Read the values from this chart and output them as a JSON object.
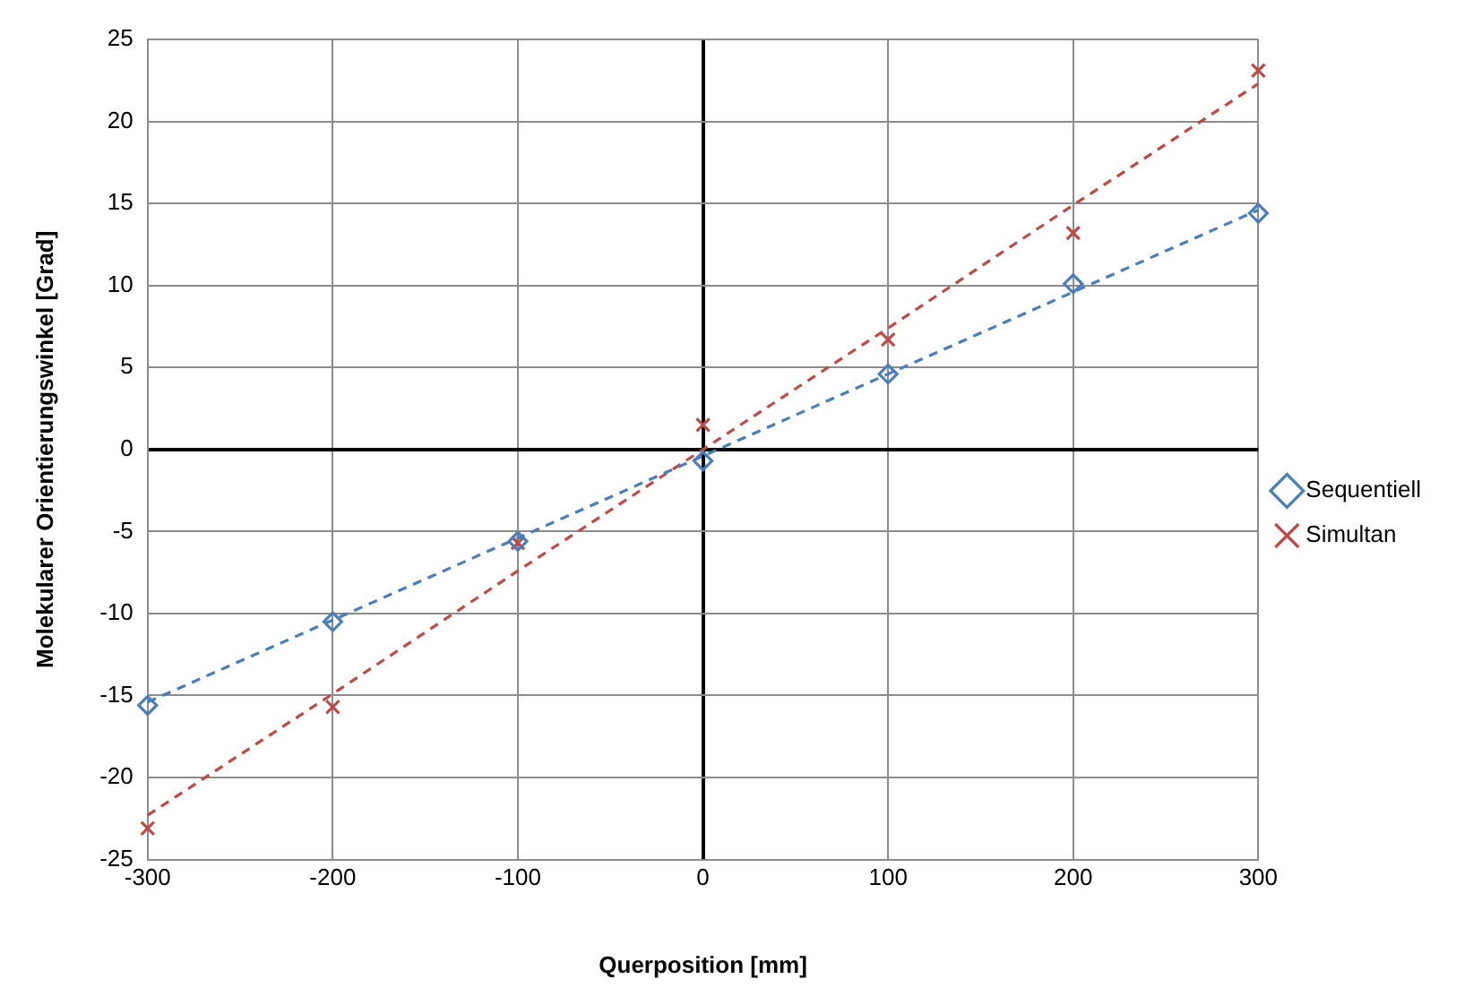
{
  "chart_data": {
    "type": "scatter",
    "xlabel": "Querposition [mm]",
    "ylabel": "Molekularer Orientierungswinkel [Grad]",
    "x": [
      -300,
      -200,
      -100,
      0,
      100,
      200,
      300
    ],
    "series": [
      {
        "name": "Sequentiell",
        "color": "#4a7ebb",
        "marker": "diamond",
        "values": [
          -15.6,
          -10.5,
          -5.6,
          -0.7,
          4.6,
          10.1,
          14.4
        ]
      },
      {
        "name": "Simultan",
        "color": "#be4b48",
        "marker": "cross",
        "values": [
          -23.1,
          -15.7,
          -5.7,
          1.5,
          6.7,
          13.2,
          23.1
        ]
      },
      {
        "type": "line",
        "color": "#4a7ebb",
        "line_style": "dashed",
        "marker": "none",
        "values": [
          -15.4,
          -10.4,
          -5.4,
          -0.4,
          4.6,
          9.6,
          14.6
        ]
      },
      {
        "type": "line",
        "color": "#be4b48",
        "line_style": "dashed",
        "marker": "none",
        "values": [
          -22.3,
          -14.9,
          -7.4,
          0,
          7.4,
          14.9,
          22.3
        ]
      }
    ],
    "xlim": [
      -300,
      300
    ],
    "xticks": [
      -300,
      -200,
      -100,
      0,
      100,
      200,
      300
    ],
    "ylim": [
      -25,
      25
    ],
    "yticks": [
      -25,
      -20,
      -15,
      -10,
      -5,
      0,
      5,
      10,
      15,
      20,
      25
    ],
    "grid": true,
    "legend": "right"
  }
}
